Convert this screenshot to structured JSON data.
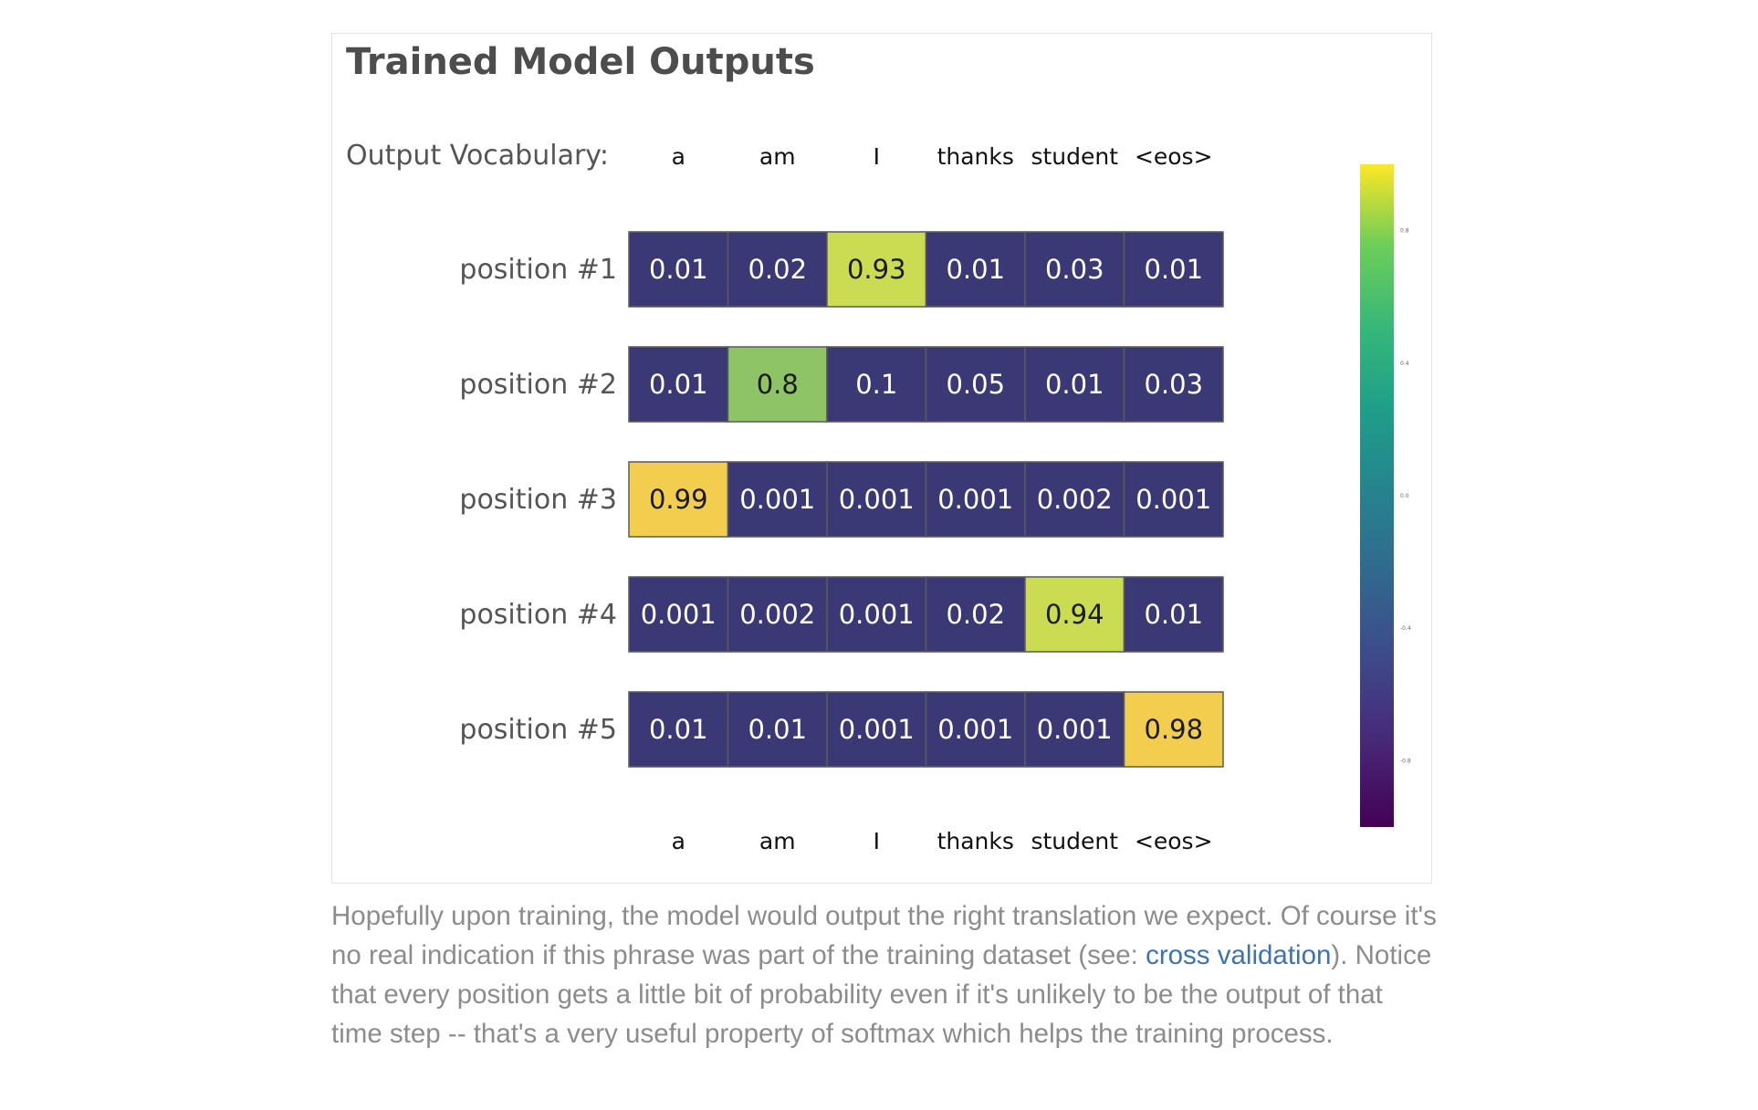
{
  "chart_data": {
    "type": "heatmap",
    "title": "Trained Model Outputs",
    "top_axis_title": "Output Vocabulary:",
    "columns": [
      "a",
      "am",
      "I",
      "thanks",
      "student",
      "<eos>"
    ],
    "rows": [
      "position #1",
      "position #2",
      "position #3",
      "position #4",
      "position #5"
    ],
    "values": [
      [
        "0.01",
        "0.02",
        "0.93",
        "0.01",
        "0.03",
        "0.01"
      ],
      [
        "0.01",
        "0.8",
        "0.1",
        "0.05",
        "0.01",
        "0.03"
      ],
      [
        "0.99",
        "0.001",
        "0.001",
        "0.001",
        "0.002",
        "0.001"
      ],
      [
        "0.001",
        "0.002",
        "0.001",
        "0.02",
        "0.94",
        "0.01"
      ],
      [
        "0.01",
        "0.01",
        "0.001",
        "0.001",
        "0.001",
        "0.98"
      ]
    ],
    "colorscale": "viridis",
    "colorbar": {
      "range": [
        -1,
        1
      ],
      "ticks": [
        0.8,
        0.4,
        0.0,
        -0.4,
        -0.8
      ],
      "tick_labels": [
        "0.8",
        "0.4",
        "0.0",
        "-0.4",
        "-0.8"
      ]
    }
  },
  "caption": {
    "before_link1": "Hopefully upon training, the model would output the right translation we expect. Of course it's no real indication if this phrase was part of the training dataset (see: ",
    "link1": "cross validation",
    "after_link1": "). Notice that every position gets a little bit of probability even if it's unlikely to be the output of that time step -- that's a very useful property of softmax which helps the training process."
  }
}
